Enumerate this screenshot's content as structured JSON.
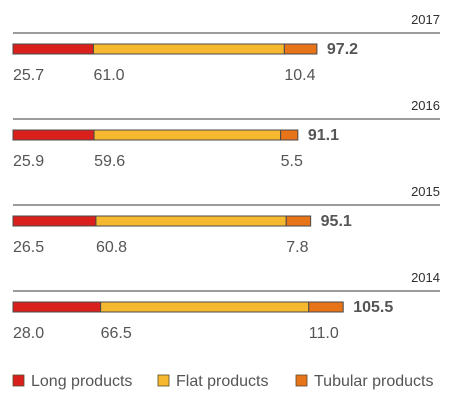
{
  "chart_data": {
    "type": "bar",
    "orientation": "horizontal",
    "stacked": true,
    "categories": [
      "2017",
      "2016",
      "2015",
      "2014"
    ],
    "series": [
      {
        "name": "Long products",
        "color": "#d9201c",
        "values": [
          25.7,
          25.9,
          26.5,
          28.0
        ]
      },
      {
        "name": "Flat products",
        "color": "#f5b82e",
        "values": [
          61.0,
          59.6,
          60.8,
          66.5
        ]
      },
      {
        "name": "Tubular products",
        "color": "#e8741a",
        "values": [
          10.4,
          5.5,
          7.8,
          11.0
        ]
      }
    ],
    "totals": [
      "97.2",
      "91.1",
      "95.1",
      "105.5"
    ],
    "value_labels": [
      [
        "25.7",
        "61.0",
        "10.4"
      ],
      [
        "25.9",
        "59.6",
        "5.5"
      ],
      [
        "26.5",
        "60.8",
        "7.8"
      ],
      [
        "28.0",
        "66.5",
        "11.0"
      ]
    ],
    "xlim": [
      0,
      105.5
    ],
    "grid": false,
    "legend_position": "bottom"
  }
}
